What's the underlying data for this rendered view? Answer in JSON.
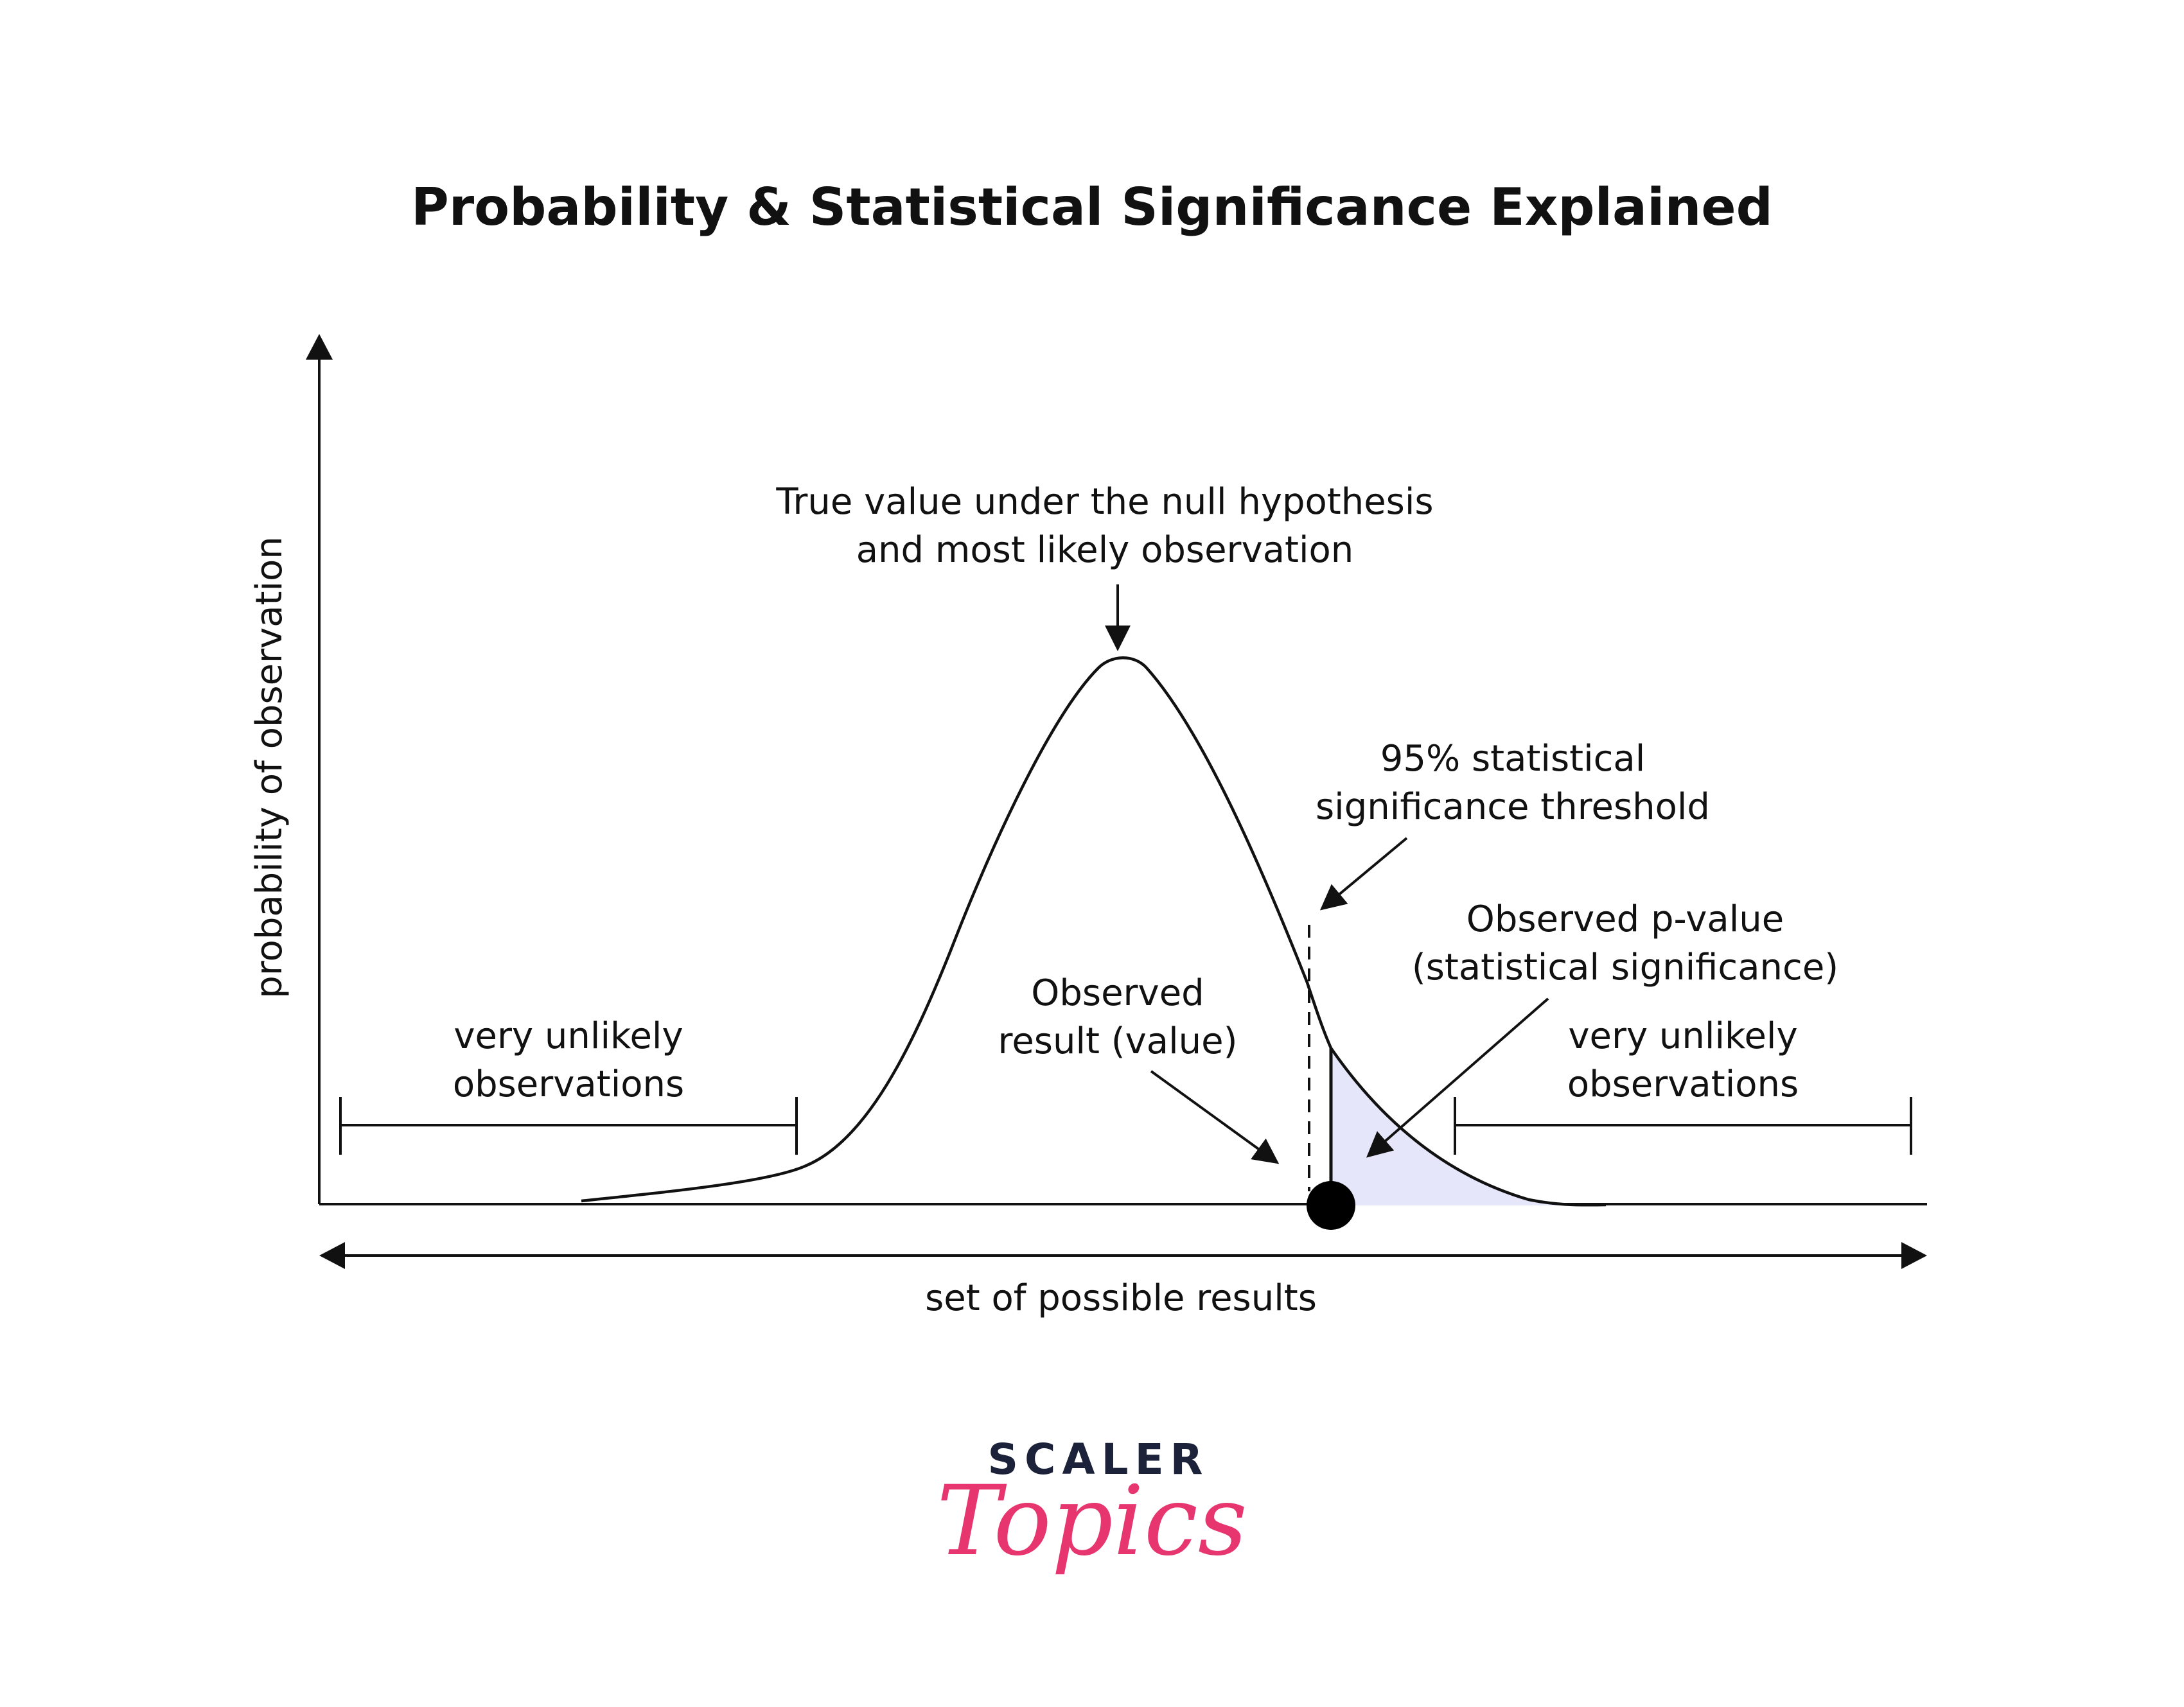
{
  "title": "Probability & Statistical Significance Explained",
  "axes": {
    "y_label": "probability of observation",
    "x_label": "set of possible results"
  },
  "annotations": {
    "peak_line1": "True value under the null hypothesis",
    "peak_line2": "and most likely observation",
    "threshold_line1": "95% statistical",
    "threshold_line2": "significance threshold",
    "pvalue_line1": "Observed p-value",
    "pvalue_line2": "(statistical significance)",
    "observed_line1": "Observed",
    "observed_line2": "result (value)",
    "left_tail_line1": "very unlikely",
    "left_tail_line2": "observations",
    "right_tail_line1": "very unlikely",
    "right_tail_line2": "observations"
  },
  "brand": {
    "name": "SCALER",
    "sub": "Topics"
  },
  "colors": {
    "line": "#111111",
    "pvalue_fill": "#e6e6fb",
    "brand_dark": "#1b2239",
    "brand_pink": "#e6356f"
  }
}
